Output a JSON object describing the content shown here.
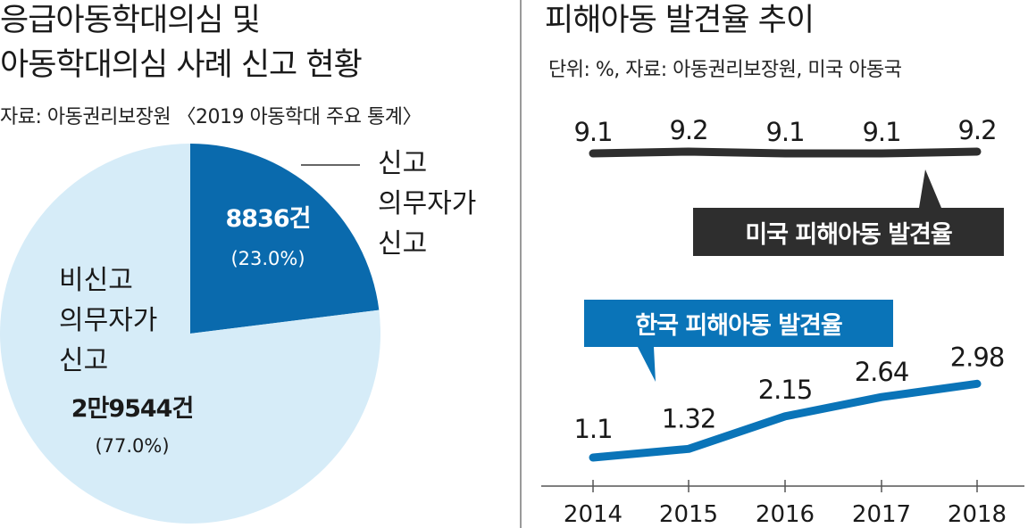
{
  "colors": {
    "pie_reporter": "#0a6aad",
    "pie_non_reporter": "#d6ecf8",
    "us_line": "#2e2e2e",
    "kr_line": "#0a74b8",
    "divider": "#9a9a9a"
  },
  "left": {
    "title_line1": "응급아동학대의심 및",
    "title_line2": "아동학대의심 사례 신고 현황",
    "source": "자료: 아동권리보장원 〈2019 아동학대 주요 통계〉"
  },
  "right": {
    "title": "피해아동 발견율 추이",
    "source": "단위: %, 자료: 아동권리보장원, 미국 아동국"
  },
  "chart_data": [
    {
      "type": "pie",
      "title": "응급아동학대의심 및 아동학대의심 사례 신고 현황",
      "slices": [
        {
          "label_lines": [
            "신고",
            "의무자가",
            "신고"
          ],
          "value_text": "8836건",
          "percent_text": "(23.0%)",
          "value": 8836,
          "percent": 23.0
        },
        {
          "label_lines": [
            "비신고",
            "의무자가",
            "신고"
          ],
          "value_text": "2만9544건",
          "percent_text": "(77.0%)",
          "value": 29544,
          "percent": 77.0
        }
      ]
    },
    {
      "type": "line",
      "title": "피해아동 발견율 추이",
      "x": [
        "2014",
        "2015",
        "2016",
        "2017",
        "2018"
      ],
      "series": [
        {
          "name": "미국 피해아동 발견율",
          "values": [
            9.1,
            9.2,
            9.1,
            9.1,
            9.2
          ],
          "labels": [
            "9.1",
            "9.2",
            "9.1",
            "9.1",
            "9.2"
          ]
        },
        {
          "name": "한국 피해아동 발견율",
          "values": [
            1.1,
            1.32,
            2.15,
            2.64,
            2.98
          ],
          "labels": [
            "1.1",
            "1.32",
            "2.15",
            "2.64",
            "2.98"
          ]
        }
      ]
    }
  ]
}
